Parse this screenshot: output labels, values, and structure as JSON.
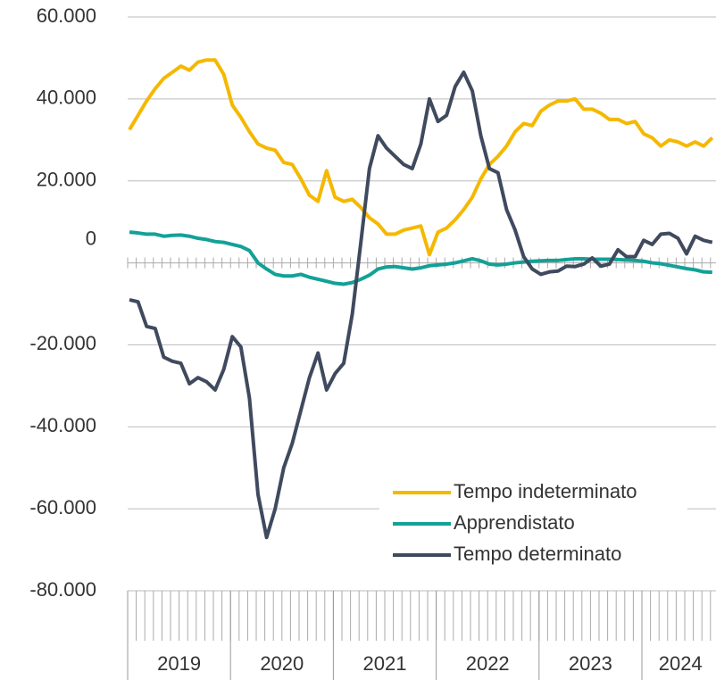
{
  "chart_data": {
    "type": "line",
    "categories": [
      "2019",
      null,
      null,
      null,
      null,
      null,
      null,
      null,
      null,
      null,
      null,
      null,
      "2020",
      null,
      null,
      null,
      null,
      null,
      null,
      null,
      null,
      null,
      null,
      null,
      "2021",
      null,
      null,
      null,
      null,
      null,
      null,
      null,
      null,
      null,
      null,
      null,
      "2022",
      null,
      null,
      null,
      null,
      null,
      null,
      null,
      null,
      null,
      null,
      null,
      "2023",
      null,
      null,
      null,
      null,
      null,
      null,
      null,
      null,
      null,
      null,
      null,
      "2024",
      null,
      null,
      null,
      null,
      null,
      null,
      null,
      null
    ],
    "series": [
      {
        "name": "Tempo indeterminato",
        "color": "#f5b800",
        "values": [
          32500,
          36000,
          39500,
          42500,
          45000,
          46500,
          48000,
          47000,
          49000,
          49500,
          49500,
          46000,
          38500,
          35500,
          32000,
          29000,
          28000,
          27500,
          24500,
          24000,
          20500,
          16500,
          15000,
          22500,
          16000,
          15000,
          15500,
          13500,
          11000,
          9500,
          7000,
          7000,
          8000,
          8500,
          9000,
          2000,
          7500,
          8500,
          10500,
          13000,
          16000,
          20500,
          24000,
          26000,
          28500,
          32000,
          34000,
          33500,
          37000,
          38500,
          39500,
          39500,
          40000,
          37500,
          37500,
          36500,
          35000,
          35000,
          34000,
          34500,
          31500,
          30500,
          28500,
          30000,
          29500,
          28500,
          29500,
          28500,
          30500
        ]
      },
      {
        "name": "Apprendistato",
        "color": "#13a197",
        "values": [
          7500,
          7300,
          7000,
          7000,
          6500,
          6700,
          6800,
          6500,
          6000,
          5700,
          5200,
          5000,
          4500,
          4000,
          3000,
          0,
          -1500,
          -2800,
          -3200,
          -3200,
          -2800,
          -3500,
          -4000,
          -4500,
          -5000,
          -5200,
          -4800,
          -4000,
          -3000,
          -1500,
          -1000,
          -900,
          -1200,
          -1500,
          -1200,
          -700,
          -500,
          -300,
          0,
          500,
          1000,
          500,
          -300,
          -500,
          -300,
          0,
          200,
          400,
          500,
          600,
          600,
          800,
          1000,
          1000,
          900,
          900,
          900,
          800,
          700,
          600,
          400,
          0,
          -200,
          -600,
          -1000,
          -1400,
          -1700,
          -2200,
          -2300
        ]
      },
      {
        "name": "Tempo determinato",
        "color": "#404a5e",
        "values": [
          -9000,
          -9500,
          -15500,
          -16000,
          -23000,
          -24000,
          -24500,
          -29500,
          -28000,
          -29000,
          -31000,
          -26000,
          -18000,
          -20500,
          -33000,
          -56500,
          -67000,
          -60000,
          -50000,
          -44000,
          -36000,
          -28000,
          -22000,
          -31000,
          -27000,
          -24500,
          -12500,
          5000,
          23000,
          31000,
          28000,
          26000,
          24000,
          23000,
          29000,
          40000,
          34500,
          36000,
          43000,
          46500,
          42000,
          31000,
          23000,
          22000,
          13000,
          8000,
          1500,
          -1500,
          -2800,
          -2200,
          -2000,
          -800,
          -900,
          -300,
          1200,
          -800,
          -300,
          3200,
          1500,
          1500,
          5500,
          4500,
          7000,
          7200,
          6000,
          2200,
          6500,
          5500,
          5000
        ]
      }
    ],
    "ylim": [
      -80000,
      60000
    ],
    "yticks": [
      {
        "value": -80000,
        "label": "-80.000"
      },
      {
        "value": -60000,
        "label": "-60.000"
      },
      {
        "value": -40000,
        "label": "-40.000"
      },
      {
        "value": -20000,
        "label": "-20.000"
      },
      0,
      {
        "value": 20000,
        "label": "20.000"
      },
      {
        "value": 40000,
        "label": "40.000"
      },
      {
        "value": 60000,
        "label": "60.000"
      }
    ],
    "grid": true,
    "legend": "lower right"
  }
}
